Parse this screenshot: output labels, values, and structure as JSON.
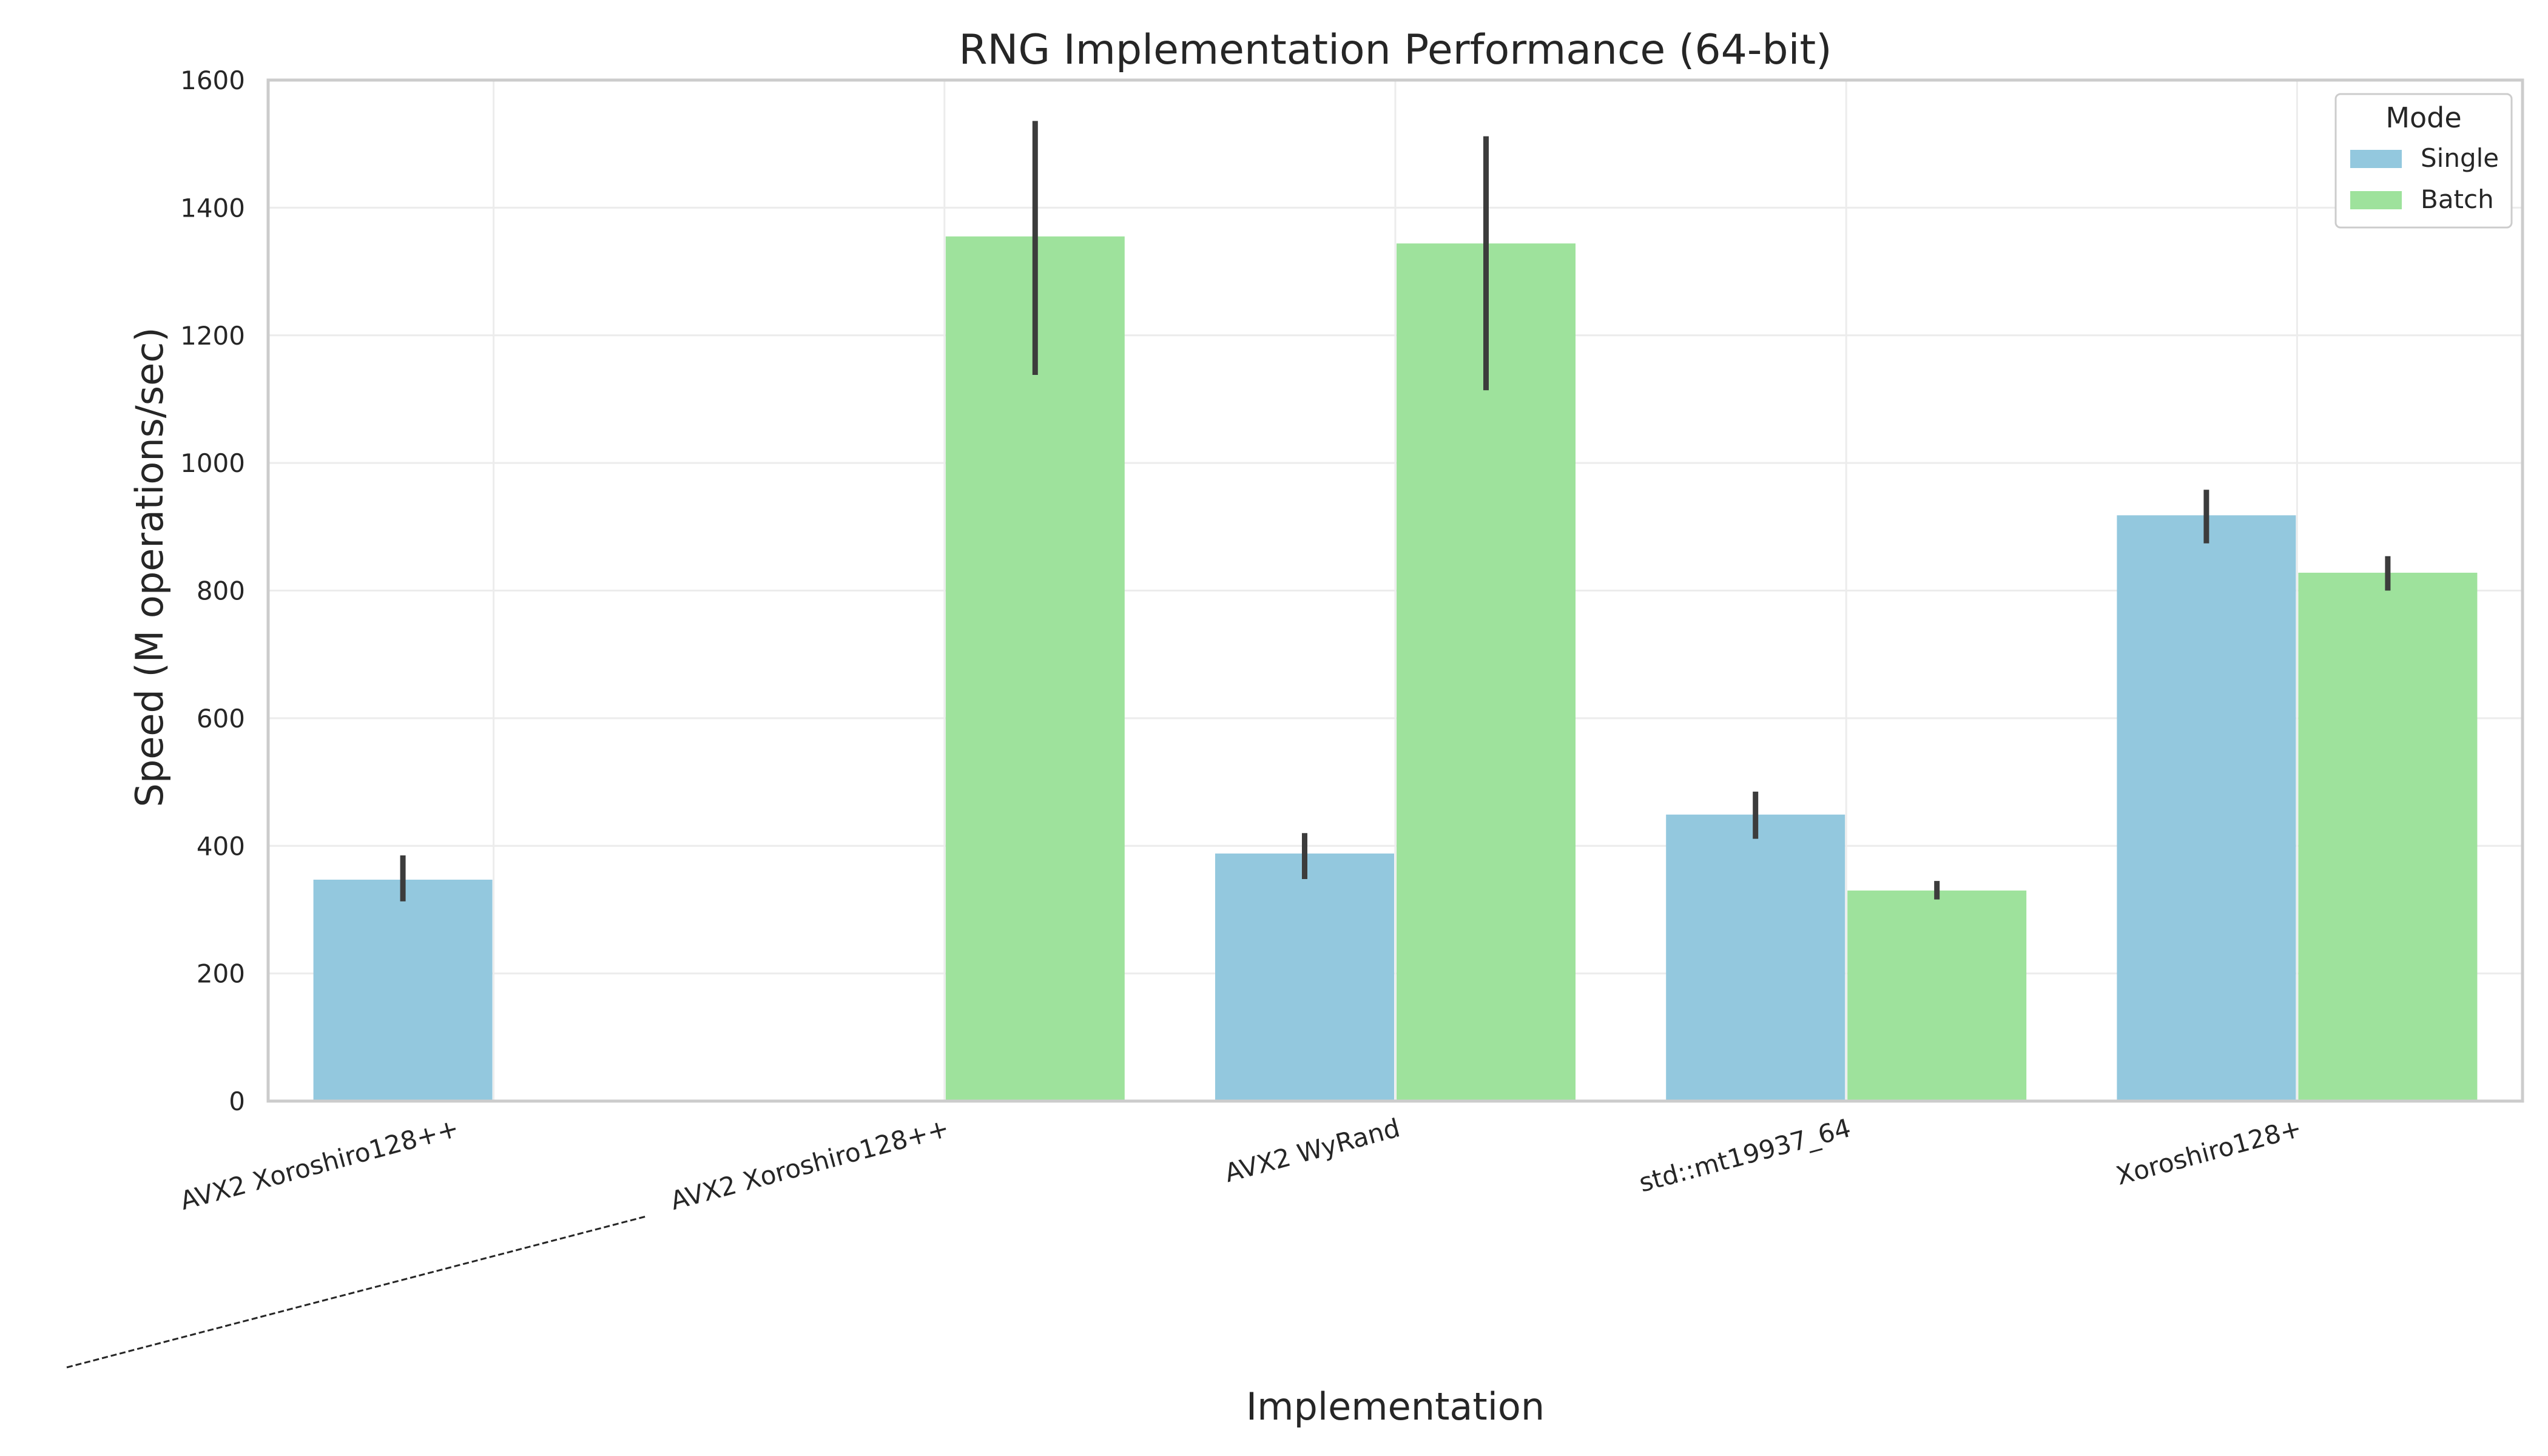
{
  "chart_data": {
    "type": "bar",
    "title": "RNG Implementation Performance (64-bit)",
    "xlabel": "Implementation",
    "ylabel": "Speed (M operations/sec)",
    "ylim": [
      0,
      1600
    ],
    "yticks": [
      0,
      200,
      400,
      600,
      800,
      1000,
      1200,
      1400,
      1600
    ],
    "grid": true,
    "legend": {
      "title": "Mode",
      "placement": "top-right"
    },
    "categories": [
      "AVX2 Xoroshiro128++",
      "AVX2 Xoroshiro128++",
      "AVX2 WyRand",
      "std::mt19937_64",
      "Xoroshiro128+"
    ],
    "series": [
      {
        "name": "Single",
        "color": "#93c8de",
        "values": [
          347,
          null,
          388,
          449,
          918
        ],
        "error_low": [
          313,
          null,
          348,
          411,
          874
        ],
        "error_high": [
          385,
          null,
          420,
          485,
          958
        ]
      },
      {
        "name": "Batch",
        "color": "#9ee29c",
        "values": [
          null,
          1355,
          1344,
          330,
          828
        ],
        "error_low": [
          null,
          1138,
          1114,
          316,
          800
        ],
        "error_high": [
          null,
          1536,
          1512,
          345,
          854
        ]
      }
    ]
  }
}
